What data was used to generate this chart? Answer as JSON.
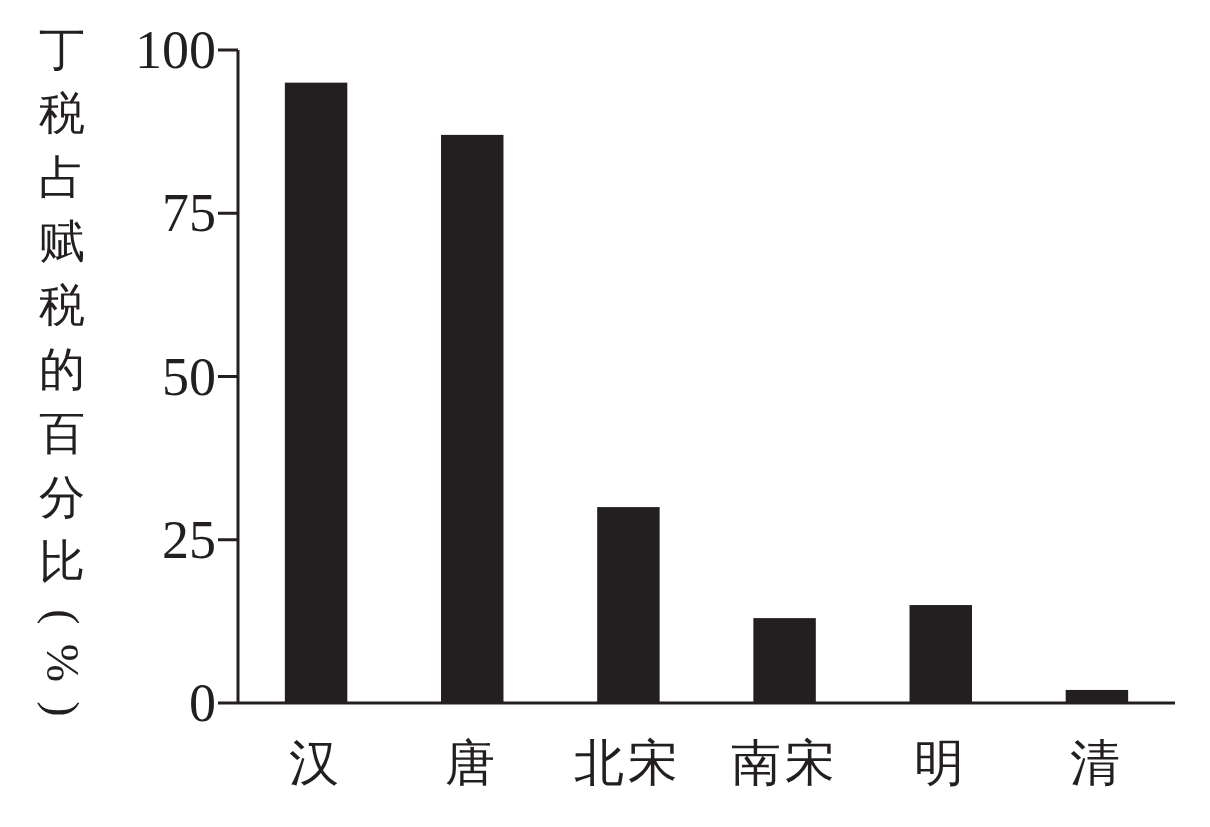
{
  "chart_data": {
    "type": "bar",
    "ylabel": "丁税占赋税的百分比(%)",
    "categories": [
      "汉",
      "唐",
      "北宋",
      "南宋",
      "明",
      "清"
    ],
    "values": [
      95,
      87,
      30,
      13,
      15,
      2
    ],
    "color": "#231f20",
    "ylim": [
      0,
      100
    ],
    "yticks": [
      0,
      25,
      50,
      75,
      100
    ],
    "grid": false
  }
}
